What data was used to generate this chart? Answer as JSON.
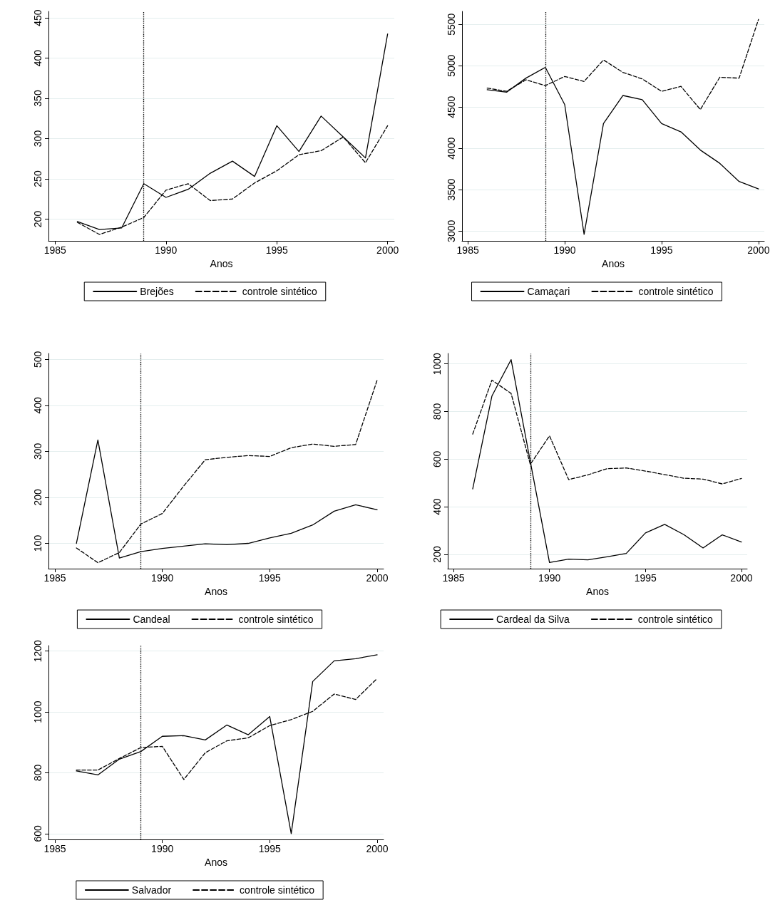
{
  "chart_data": [
    {
      "type": "line",
      "xlabel": "Anos",
      "x": [
        1986,
        1987,
        1988,
        1989,
        1990,
        1991,
        1992,
        1993,
        1994,
        1995,
        1996,
        1997,
        1998,
        1999,
        2000
      ],
      "xlim": [
        1984.7,
        2000.3
      ],
      "xticks": [
        1985,
        1990,
        1995,
        2000
      ],
      "ylim": [
        173,
        458
      ],
      "yticks": [
        200,
        250,
        300,
        350,
        400,
        450
      ],
      "grid": "y",
      "legend": "bottom",
      "marker": "none",
      "series": [
        {
          "name": "Brejões",
          "color": "#000000",
          "line_style": "solid",
          "values": [
            197,
            187,
            189,
            244,
            227,
            237,
            257,
            272,
            253,
            316,
            284,
            328,
            302,
            276,
            430
          ]
        },
        {
          "name": "controle sintético",
          "color": "#000000",
          "line_style": "dashed",
          "values": [
            196,
            181,
            190,
            202,
            236,
            244,
            223,
            225,
            245,
            260,
            280,
            285,
            302,
            270,
            316
          ]
        }
      ],
      "ref_lines": [
        {
          "axis": "x",
          "value": 1989,
          "color": "#000000",
          "line_style": "dotted"
        }
      ]
    },
    {
      "type": "line",
      "xlabel": "Anos",
      "x": [
        1986,
        1987,
        1988,
        1989,
        1990,
        1991,
        1992,
        1993,
        1994,
        1995,
        1996,
        1997,
        1998,
        1999,
        2000
      ],
      "xlim": [
        1984.7,
        2000.3
      ],
      "xticks": [
        1985,
        1990,
        1995,
        2000
      ],
      "ylim": [
        2882,
        5657
      ],
      "yticks": [
        3000,
        3500,
        4000,
        4500,
        5000,
        5500
      ],
      "grid": "y",
      "legend": "bottom",
      "marker": "none",
      "series": [
        {
          "name": "Camaçari",
          "color": "#000000",
          "line_style": "solid",
          "values": [
            4710,
            4680,
            4850,
            4980,
            4530,
            2960,
            4300,
            4640,
            4590,
            4300,
            4200,
            3980,
            3820,
            3600,
            3510
          ]
        },
        {
          "name": "controle sintético",
          "color": "#000000",
          "line_style": "dashed",
          "values": [
            4730,
            4690,
            4830,
            4760,
            4870,
            4810,
            5070,
            4920,
            4840,
            4690,
            4750,
            4470,
            4860,
            4850,
            5560
          ]
        }
      ],
      "ref_lines": [
        {
          "axis": "x",
          "value": 1989,
          "color": "#000000",
          "line_style": "dotted"
        }
      ]
    },
    {
      "type": "line",
      "xlabel": "Anos",
      "x": [
        1986,
        1987,
        1988,
        1989,
        1990,
        1991,
        1992,
        1993,
        1994,
        1995,
        1996,
        1997,
        1998,
        1999,
        2000
      ],
      "xlim": [
        1984.7,
        2000.3
      ],
      "xticks": [
        1985,
        1990,
        1995,
        2000
      ],
      "ylim": [
        45,
        513
      ],
      "yticks": [
        100,
        200,
        300,
        400,
        500
      ],
      "grid": "y",
      "legend": "bottom",
      "marker": "none",
      "series": [
        {
          "name": "Candeal",
          "color": "#000000",
          "line_style": "solid",
          "values": [
            100,
            325,
            68,
            82,
            89,
            94,
            99,
            97,
            100,
            112,
            122,
            140,
            170,
            184,
            173
          ]
        },
        {
          "name": "controle sintético",
          "color": "#000000",
          "line_style": "dashed",
          "values": [
            90,
            58,
            80,
            142,
            165,
            225,
            282,
            287,
            291,
            289,
            308,
            316,
            311,
            315,
            455
          ]
        }
      ],
      "ref_lines": [
        {
          "axis": "x",
          "value": 1989,
          "color": "#000000",
          "line_style": "dotted"
        }
      ]
    },
    {
      "type": "line",
      "xlabel": "Anos",
      "x": [
        1986,
        1987,
        1988,
        1989,
        1990,
        1991,
        1992,
        1993,
        1994,
        1995,
        1996,
        1997,
        1998,
        1999,
        2000
      ],
      "xlim": [
        1984.7,
        2000.3
      ],
      "xticks": [
        1985,
        1990,
        1995,
        2000
      ],
      "ylim": [
        140,
        1044
      ],
      "yticks": [
        200,
        400,
        600,
        800,
        1000
      ],
      "grid": "y",
      "legend": "bottom",
      "marker": "none",
      "series": [
        {
          "name": "Cardeal da Silva",
          "color": "#000000",
          "line_style": "solid",
          "values": [
            475,
            865,
            1018,
            590,
            166,
            180,
            177,
            190,
            204,
            290,
            326,
            283,
            227,
            282,
            252
          ]
        },
        {
          "name": "controle sintético",
          "color": "#000000",
          "line_style": "dashed",
          "values": [
            705,
            932,
            876,
            578,
            698,
            514,
            534,
            560,
            563,
            550,
            535,
            520,
            516,
            496,
            519
          ]
        }
      ],
      "ref_lines": [
        {
          "axis": "x",
          "value": 1989,
          "color": "#000000",
          "line_style": "dotted"
        }
      ]
    },
    {
      "type": "line",
      "xlabel": "Anos",
      "x": [
        1986,
        1987,
        1988,
        1989,
        1990,
        1991,
        1992,
        1993,
        1994,
        1995,
        1996,
        1997,
        1998,
        1999,
        2000
      ],
      "xlim": [
        1984.7,
        2000.3
      ],
      "xticks": [
        1985,
        1990,
        1995,
        2000
      ],
      "ylim": [
        581,
        1218
      ],
      "yticks": [
        600,
        800,
        1000,
        1200
      ],
      "grid": "y",
      "legend": "bottom",
      "marker": "none",
      "series": [
        {
          "name": "Salvador",
          "color": "#000000",
          "line_style": "solid",
          "values": [
            806,
            793,
            845,
            870,
            920,
            922,
            908,
            957,
            925,
            985,
            600,
            1100,
            1168,
            1175,
            1188
          ]
        },
        {
          "name": "controle sintético",
          "color": "#000000",
          "line_style": "dashed",
          "values": [
            809,
            809,
            847,
            883,
            887,
            778,
            866,
            905,
            915,
            955,
            975,
            1002,
            1059,
            1041,
            1110
          ]
        }
      ],
      "ref_lines": [
        {
          "axis": "x",
          "value": 1989,
          "color": "#000000",
          "line_style": "dotted"
        }
      ]
    }
  ]
}
